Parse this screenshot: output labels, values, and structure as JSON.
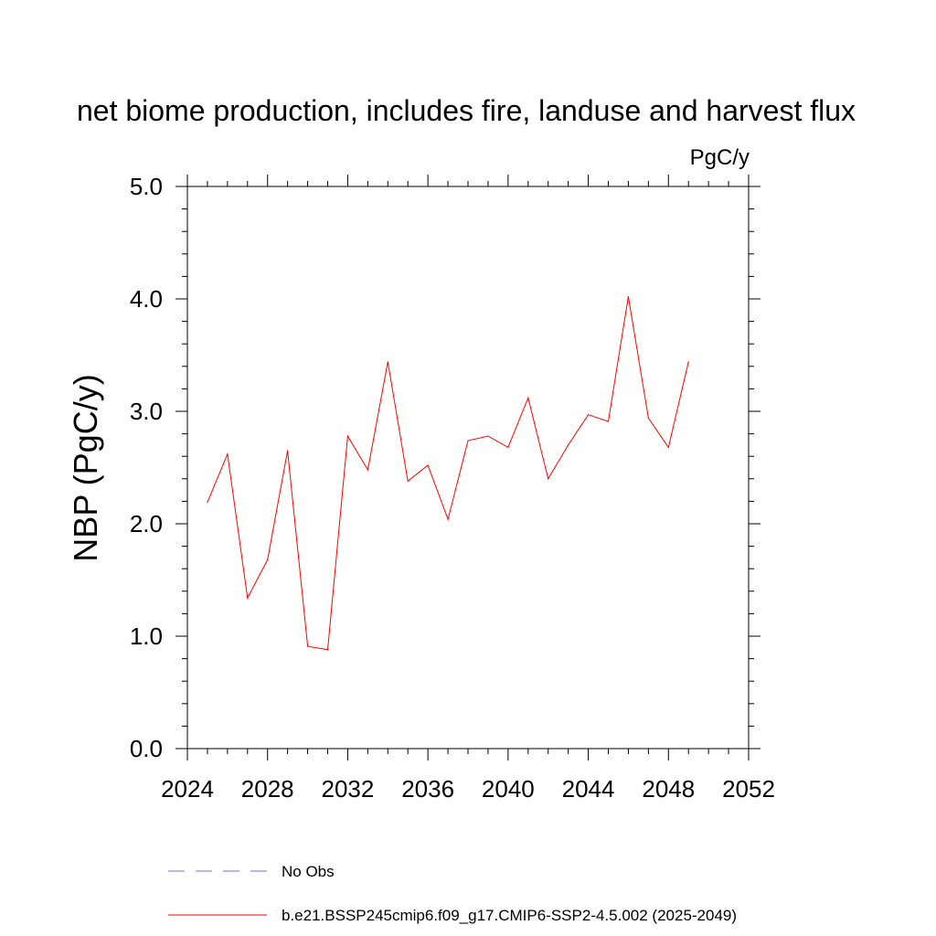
{
  "chart_data": {
    "type": "line",
    "title": "net biome production, includes fire, landuse and harvest flux",
    "units": "PgC/y",
    "ylabel": "NBP  (PgC/y)",
    "xlabel": "",
    "xlim": [
      2024,
      2052
    ],
    "ylim": [
      0,
      5
    ],
    "x_ticks": [
      2024,
      2028,
      2032,
      2036,
      2040,
      2044,
      2048,
      2052
    ],
    "x_tick_labels": [
      "2024",
      "2028",
      "2032",
      "2036",
      "2040",
      "2044",
      "2048",
      "2052"
    ],
    "y_ticks": [
      0,
      1,
      2,
      3,
      4,
      5
    ],
    "y_tick_labels": [
      "0.0",
      "1.0",
      "2.0",
      "3.0",
      "4.0",
      "5.0"
    ],
    "grid": false,
    "legend_position": "bottom",
    "series": [
      {
        "name": "b.e21.BSSP245cmip6.f09_g17.CMIP6-SSP2-4.5.002 (2025-2049)",
        "color": "#ff0000",
        "style": "solid",
        "x": [
          2025,
          2026,
          2027,
          2028,
          2029,
          2030,
          2031,
          2032,
          2033,
          2034,
          2035,
          2036,
          2037,
          2038,
          2039,
          2040,
          2041,
          2042,
          2043,
          2044,
          2045,
          2046,
          2047,
          2048,
          2049
        ],
        "y": [
          2.19,
          2.62,
          1.34,
          1.68,
          2.65,
          0.91,
          0.88,
          2.78,
          2.48,
          3.44,
          2.38,
          2.52,
          2.04,
          2.74,
          2.78,
          2.68,
          3.12,
          2.4,
          2.7,
          2.97,
          2.91,
          4.02,
          2.94,
          2.68,
          3.44
        ]
      }
    ],
    "legend": [
      {
        "label": "No Obs",
        "color": "#7b72c6",
        "style": "dashed"
      },
      {
        "label": "b.e21.BSSP245cmip6.f09_g17.CMIP6-SSP2-4.5.002 (2025-2049)",
        "color": "#ff0000",
        "style": "solid"
      }
    ]
  }
}
